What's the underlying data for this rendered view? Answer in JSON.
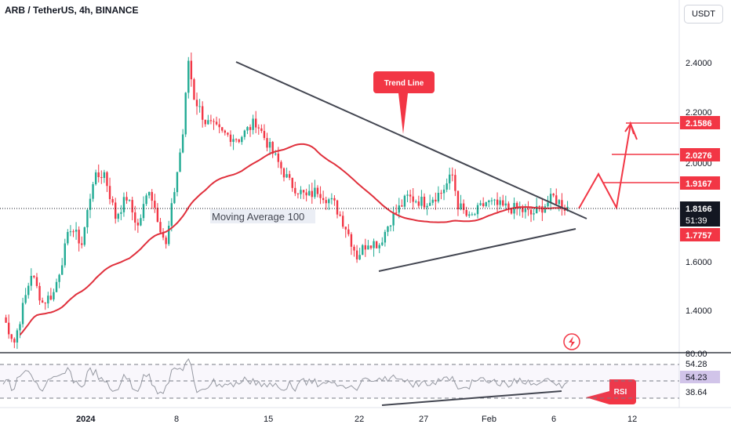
{
  "header": {
    "symbol_title": "ARB / TetherUS, 4h, BINANCE",
    "currency_button": "USDT"
  },
  "colors": {
    "up": "#22ab94",
    "down": "#f23645",
    "ma": "#e0303c",
    "trend": "#434651",
    "rsi": "#9598a1",
    "price_label": "#131722",
    "annotation": "#f23645"
  },
  "chart_data": [
    {
      "type": "candlestick",
      "title": "ARB / TetherUS, 4h, BINANCE",
      "x_ticks": [
        "2024",
        "8",
        "15",
        "22",
        "27",
        "Feb",
        "6",
        "12"
      ],
      "y_ticks": [
        "1.4000",
        "1.6000",
        "2.0000",
        "2.2000",
        "2.4000"
      ],
      "ylim": [
        1.22,
        2.6
      ],
      "price_path": [
        [
          0,
          1.37
        ],
        [
          4,
          1.27
        ],
        [
          10,
          1.55
        ],
        [
          14,
          1.43
        ],
        [
          18,
          1.47
        ],
        [
          24,
          1.74
        ],
        [
          28,
          1.67
        ],
        [
          32,
          1.93
        ],
        [
          36,
          1.96
        ],
        [
          40,
          1.78
        ],
        [
          44,
          1.86
        ],
        [
          48,
          1.74
        ],
        [
          52,
          1.9
        ],
        [
          58,
          1.66
        ],
        [
          64,
          2.12
        ],
        [
          66,
          2.42
        ],
        [
          68,
          2.27
        ],
        [
          72,
          2.17
        ],
        [
          78,
          2.12
        ],
        [
          84,
          2.1
        ],
        [
          90,
          2.17
        ],
        [
          96,
          2.04
        ],
        [
          102,
          1.92
        ],
        [
          108,
          1.86
        ],
        [
          112,
          1.89
        ],
        [
          118,
          1.83
        ],
        [
          122,
          1.74
        ],
        [
          126,
          1.62
        ],
        [
          130,
          1.68
        ],
        [
          134,
          1.67
        ],
        [
          138,
          1.77
        ],
        [
          144,
          1.86
        ],
        [
          150,
          1.84
        ],
        [
          156,
          1.88
        ],
        [
          160,
          1.95
        ],
        [
          162,
          1.83
        ],
        [
          166,
          1.77
        ],
        [
          172,
          1.84
        ],
        [
          178,
          1.82
        ],
        [
          184,
          1.81
        ],
        [
          188,
          1.79
        ],
        [
          192,
          1.82
        ],
        [
          196,
          1.86
        ],
        [
          200,
          1.82
        ]
      ],
      "annotations": {
        "moving_average_label": "Moving Average 100",
        "trend_line_callout": "Trend Line",
        "rsi_callout": "RSI"
      },
      "price_labels": [
        {
          "value": "2.1586",
          "kind": "target"
        },
        {
          "value": "2.0276",
          "kind": "target"
        },
        {
          "value": "1.9167",
          "kind": "target"
        },
        {
          "value": "1.8166",
          "kind": "current"
        },
        {
          "value": "51:39",
          "kind": "countdown"
        },
        {
          "value": "1.7757",
          "kind": "ma"
        }
      ],
      "projection_path": [
        [
          1.8166,
          0
        ],
        [
          1.9167,
          1
        ],
        [
          1.8166,
          2
        ],
        [
          2.1586,
          3
        ]
      ],
      "gridlines": false
    },
    {
      "type": "line",
      "name": "RSI",
      "y_ticks": [
        "80.00",
        "54.28",
        "38.64"
      ],
      "current_value": "54.23",
      "ylim": [
        25,
        80
      ]
    }
  ]
}
